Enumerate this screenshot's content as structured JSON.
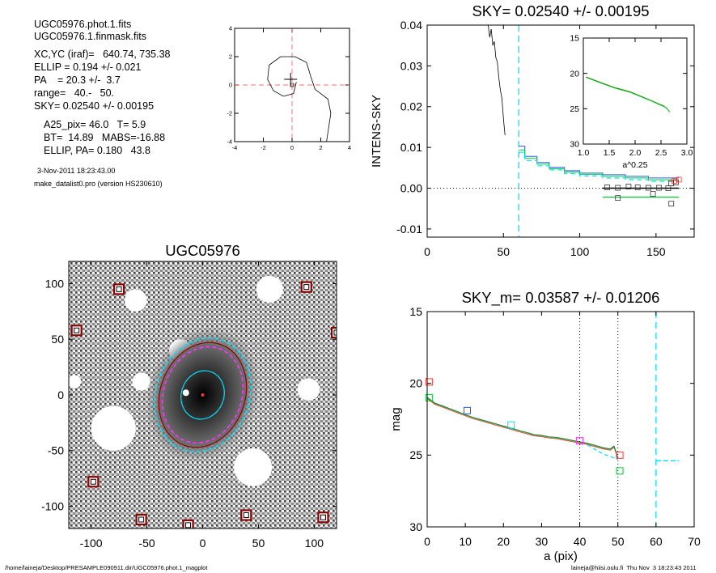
{
  "info": {
    "lines1": [
      "UGC05976.phot.1.fits",
      "UGC05976.1.finmask.fits"
    ],
    "lines2": [
      "XC,YC (iraf)=   640.74, 735.38",
      "ELLIP = 0.194 +/- 0.021",
      "PA    = 20.3 +/-  3.7",
      "range=   40.-   50.",
      "SKY= 0.02540 +/- 0.00195"
    ],
    "lines3": [
      "A25_pix= 46.0   T= 5.9",
      "BT=  14.89   MABS=-16.88",
      "ELLIP, PA= 0.180   43.8"
    ],
    "date": "3-Nov-2011 18:23:43.00",
    "program": "make_datalist0.pro (version HS230610)"
  },
  "footer": {
    "left": "/home/laineja/Desktop/PRESAMPLE090911.dir/UGC05976.phot.1_magplot",
    "right": "laineja@hiisi.oulu.fi  Thu Nov  3 18:23:43 2011"
  },
  "colors": {
    "blue": "#3355ff",
    "green": "#00cc33",
    "cyan": "#00e0ff",
    "red": "#ff3333",
    "magenta": "#ff33ff",
    "darkred": "#8b0000",
    "olive": "#3a7d00"
  },
  "chart_data": [
    {
      "id": "contour",
      "type": "contour",
      "xlim": [
        -4,
        4
      ],
      "ylim": [
        -4,
        4
      ],
      "xticks": [
        -4,
        -2,
        0,
        2,
        4
      ],
      "yticks": [
        -4,
        -2,
        0,
        2,
        4
      ],
      "contour": [
        [
          -1.6,
          1.4
        ],
        [
          -0.8,
          2.0
        ],
        [
          0.2,
          2.0
        ],
        [
          1.0,
          1.6
        ],
        [
          1.3,
          0.6
        ],
        [
          1.6,
          -0.3
        ],
        [
          2.5,
          -1.0
        ],
        [
          2.7,
          -2.0
        ],
        [
          2.4,
          -4.0
        ]
      ],
      "contour2": [
        [
          -1.6,
          1.4
        ],
        [
          -1.7,
          0.4
        ],
        [
          -1.3,
          -0.4
        ],
        [
          -0.6,
          -0.8
        ],
        [
          0.1,
          -0.6
        ],
        [
          0.3,
          0.2
        ]
      ],
      "center": [
        0,
        0
      ],
      "cross": [
        -0.1,
        0.4
      ]
    },
    {
      "id": "sky",
      "type": "line",
      "title": "SKY= 0.02540 +/- 0.00195",
      "ylabel": "INTENS-SKY",
      "xlim": [
        0,
        175
      ],
      "ylim": [
        -0.012,
        0.04
      ],
      "xticks": [
        0,
        50,
        100,
        150
      ],
      "yticks": [
        -0.01,
        0.0,
        0.01,
        0.02,
        0.03,
        0.04
      ],
      "ytick_labels": [
        "-0.01",
        "0.00",
        "0.01",
        "0.02",
        "0.03",
        "0.04"
      ],
      "steep": [
        [
          40,
          0.04
        ],
        [
          41,
          0.037
        ],
        [
          42,
          0.039
        ],
        [
          43,
          0.035
        ],
        [
          44,
          0.036
        ],
        [
          45,
          0.032
        ],
        [
          46,
          0.031
        ],
        [
          47,
          0.027
        ],
        [
          48,
          0.024
        ],
        [
          49,
          0.022
        ],
        [
          50,
          0.017
        ],
        [
          51,
          0.013
        ]
      ],
      "blue": [
        [
          60,
          0.0103
        ],
        [
          64,
          0.0103
        ],
        [
          64,
          0.0078
        ],
        [
          72,
          0.0078
        ],
        [
          72,
          0.0063
        ],
        [
          80,
          0.0063
        ],
        [
          80,
          0.0051
        ],
        [
          90,
          0.0051
        ],
        [
          90,
          0.0043
        ],
        [
          100,
          0.0043
        ],
        [
          100,
          0.0037
        ],
        [
          115,
          0.0037
        ],
        [
          115,
          0.0033
        ],
        [
          130,
          0.0033
        ],
        [
          130,
          0.0029
        ],
        [
          145,
          0.0029
        ],
        [
          145,
          0.0025
        ],
        [
          165,
          0.0025
        ]
      ],
      "cyan_step": [
        [
          60,
          0.0088
        ],
        [
          64,
          0.0088
        ],
        [
          64,
          0.0068
        ],
        [
          72,
          0.0068
        ],
        [
          72,
          0.0055
        ],
        [
          80,
          0.0055
        ],
        [
          80,
          0.0045
        ],
        [
          90,
          0.0045
        ],
        [
          90,
          0.0036
        ],
        [
          100,
          0.0036
        ],
        [
          100,
          0.003
        ],
        [
          115,
          0.003
        ],
        [
          115,
          0.0025
        ],
        [
          130,
          0.0025
        ],
        [
          130,
          0.0021
        ],
        [
          145,
          0.0021
        ],
        [
          145,
          0.0017
        ],
        [
          165,
          0.0017
        ]
      ],
      "green_step": [
        [
          60,
          0.0094
        ],
        [
          64,
          0.0094
        ],
        [
          64,
          0.0073
        ],
        [
          72,
          0.0073
        ],
        [
          72,
          0.0059
        ],
        [
          80,
          0.0059
        ],
        [
          80,
          0.0048
        ],
        [
          90,
          0.0048
        ],
        [
          90,
          0.004
        ],
        [
          100,
          0.004
        ],
        [
          100,
          0.0034
        ],
        [
          115,
          0.0034
        ],
        [
          115,
          0.0029
        ],
        [
          130,
          0.0029
        ],
        [
          130,
          0.0025
        ],
        [
          145,
          0.0025
        ],
        [
          145,
          0.0021
        ],
        [
          165,
          0.0021
        ]
      ],
      "sky_vline": 60,
      "black_line": [
        [
          115,
          0.0
        ],
        [
          165,
          0.0
        ]
      ],
      "green_line": [
        [
          115,
          -0.0022
        ],
        [
          165,
          -0.0022
        ]
      ],
      "squares": [
        [
          118,
          0.0002
        ],
        [
          125,
          0.0001
        ],
        [
          132,
          0.0004
        ],
        [
          138,
          0.0002
        ],
        [
          145,
          0.0001
        ],
        [
          152,
          0.0001
        ],
        [
          158,
          0.0
        ],
        [
          163,
          0.0014
        ],
        [
          160,
          0.0012
        ],
        [
          148,
          -0.0014
        ],
        [
          125,
          -0.0024
        ],
        [
          160,
          -0.0038
        ]
      ],
      "red_squares": [
        [
          162,
          0.0018
        ],
        [
          165,
          0.0021
        ]
      ],
      "inset": {
        "xlim": [
          1.0,
          3.0
        ],
        "ylim": [
          15,
          30
        ],
        "xticks": [
          1.0,
          1.5,
          2.0,
          2.5,
          3.0
        ],
        "xtick_labels": [
          "1.0",
          "1.5",
          "2.0",
          "2.5",
          "3.0"
        ],
        "yticks": [
          15,
          20,
          25,
          30
        ],
        "xlabel": "a^0.25",
        "line": [
          [
            1.05,
            20.5
          ],
          [
            1.3,
            21.2
          ],
          [
            1.6,
            22.0
          ],
          [
            1.9,
            22.6
          ],
          [
            2.1,
            23.2
          ],
          [
            2.3,
            23.8
          ],
          [
            2.45,
            24.3
          ],
          [
            2.55,
            24.6
          ],
          [
            2.62,
            25.0
          ],
          [
            2.66,
            25.4
          ]
        ]
      }
    },
    {
      "id": "image",
      "type": "image",
      "title": "UGC05976",
      "xlim": [
        -120,
        120
      ],
      "ylim": [
        -120,
        120
      ],
      "xticks": [
        -100,
        -50,
        0,
        50,
        100
      ],
      "yticks": [
        -100,
        -50,
        0,
        50,
        100
      ],
      "ellipses": [
        {
          "a": 52,
          "b": 42,
          "pa": 20,
          "color": "cyan",
          "dash": true
        },
        {
          "a": 48,
          "b": 38,
          "pa": 20,
          "color": "darkred",
          "dash": false
        },
        {
          "a": 44,
          "b": 35,
          "pa": 20,
          "color": "magenta",
          "dash": true
        },
        {
          "a": 22,
          "b": 19,
          "pa": 20,
          "color": "cyan",
          "dash": false
        }
      ],
      "masks": [
        [
          -75,
          95
        ],
        [
          93,
          97
        ],
        [
          -113,
          58
        ],
        [
          120,
          56
        ],
        [
          -98,
          -78
        ],
        [
          -55,
          -112
        ],
        [
          -13,
          -117
        ],
        [
          39,
          -108
        ],
        [
          108,
          -110
        ]
      ],
      "holes": [
        [
          -115,
          12,
          6
        ],
        [
          -55,
          12,
          8
        ],
        [
          -80,
          -30,
          20
        ],
        [
          60,
          95,
          12
        ],
        [
          45,
          -65,
          17
        ],
        [
          -60,
          85,
          10
        ],
        [
          95,
          5,
          10
        ],
        [
          -20,
          40,
          10
        ]
      ]
    },
    {
      "id": "mag",
      "type": "line",
      "title": "SKY_m=  0.03587 +/- 0.01206",
      "xlabel": "a (pix)",
      "ylabel": "mag",
      "xlim": [
        0,
        70
      ],
      "ylim": [
        15,
        30
      ],
      "xticks": [
        0,
        10,
        20,
        30,
        40,
        50,
        60,
        70
      ],
      "yticks": [
        15,
        20,
        25,
        30
      ],
      "vlines_dotted": [
        40,
        50
      ],
      "vline_dashed": 60,
      "profile": [
        [
          0,
          21.0
        ],
        [
          2,
          21.4
        ],
        [
          4,
          21.6
        ],
        [
          6,
          21.8
        ],
        [
          8,
          22.0
        ],
        [
          10,
          22.2
        ],
        [
          12,
          22.4
        ],
        [
          14,
          22.55
        ],
        [
          16,
          22.7
        ],
        [
          18,
          22.85
        ],
        [
          20,
          23.0
        ],
        [
          22,
          23.15
        ],
        [
          24,
          23.3
        ],
        [
          26,
          23.45
        ],
        [
          28,
          23.6
        ],
        [
          30,
          23.65
        ],
        [
          32,
          23.75
        ],
        [
          34,
          23.8
        ],
        [
          36,
          23.9
        ],
        [
          38,
          24.0
        ],
        [
          40,
          24.1
        ],
        [
          42,
          24.2
        ],
        [
          44,
          24.35
        ],
        [
          46,
          24.5
        ],
        [
          48,
          24.6
        ],
        [
          49,
          24.4
        ],
        [
          50,
          25.2
        ]
      ],
      "cyan_tail": [
        [
          42,
          24.3
        ],
        [
          44,
          24.6
        ],
        [
          46,
          24.9
        ],
        [
          48,
          25.1
        ],
        [
          50,
          25.3
        ]
      ],
      "cyan_h": [
        [
          60,
          25.4
        ],
        [
          66,
          25.4
        ]
      ],
      "squares": [
        {
          "x": 0.5,
          "y": 19.9,
          "c": "red"
        },
        {
          "x": 0.5,
          "y": 21.0,
          "c": "green"
        },
        {
          "x": 10.5,
          "y": 21.9,
          "c": "blue"
        },
        {
          "x": 22,
          "y": 22.9,
          "c": "cyan"
        },
        {
          "x": 40,
          "y": 24.0,
          "c": "magenta"
        },
        {
          "x": 50.5,
          "y": 25.0,
          "c": "red"
        },
        {
          "x": 50.5,
          "y": 26.1,
          "c": "green"
        }
      ]
    }
  ]
}
